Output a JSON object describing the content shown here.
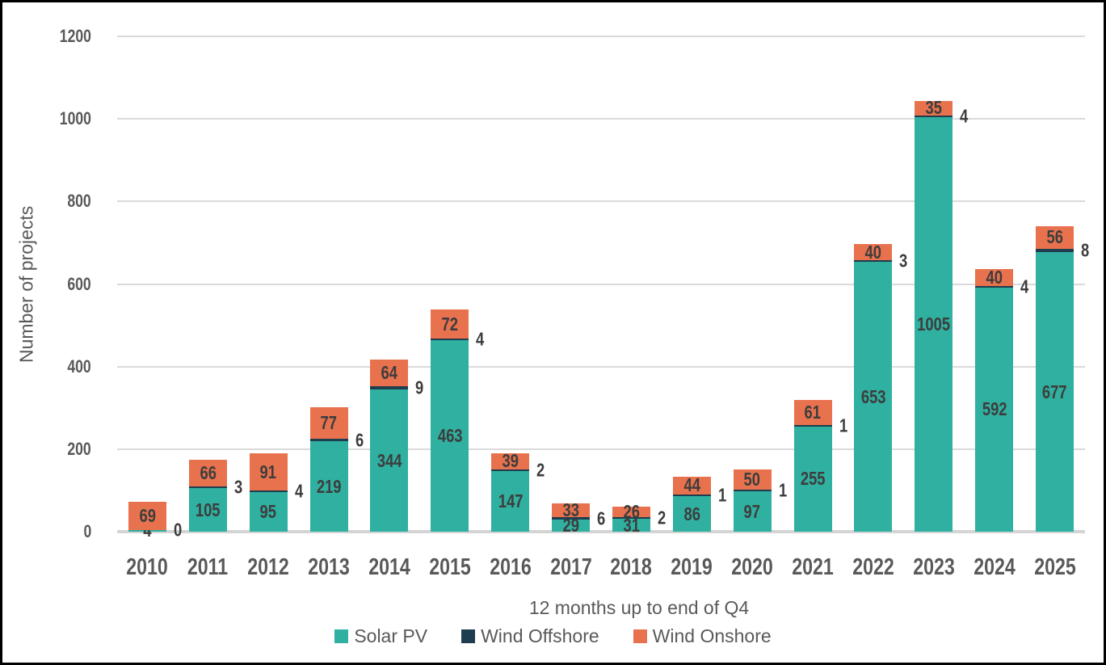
{
  "chart_data": {
    "type": "bar",
    "stacked": true,
    "title": "",
    "xlabel": "12 months up to end of Q4",
    "ylabel": "Number of projects",
    "categories": [
      "2010",
      "2011",
      "2012",
      "2013",
      "2014",
      "2015",
      "2016",
      "2017",
      "2018",
      "2019",
      "2020",
      "2021",
      "2022",
      "2023",
      "2024",
      "2025"
    ],
    "series": [
      {
        "name": "Solar PV",
        "color": "#2fb0a0",
        "values": [
          4,
          105,
          95,
          219,
          344,
          463,
          147,
          29,
          31,
          86,
          97,
          255,
          653,
          1005,
          592,
          677
        ]
      },
      {
        "name": "Wind Offshore",
        "color": "#1e3d4e",
        "values": [
          0,
          3,
          4,
          6,
          9,
          4,
          2,
          6,
          2,
          1,
          1,
          1,
          3,
          4,
          4,
          8
        ]
      },
      {
        "name": "Wind Onshore",
        "color": "#e8724e",
        "values": [
          69,
          66,
          91,
          77,
          64,
          72,
          39,
          33,
          26,
          44,
          50,
          61,
          40,
          35,
          40,
          56
        ]
      }
    ],
    "ylim": [
      0,
      1200
    ],
    "yticks": [
      0,
      200,
      400,
      600,
      800,
      1000,
      1200
    ],
    "grid": "horizontal",
    "legend_position": "bottom",
    "data_labels": true
  },
  "colors": {
    "axis_text": "#595959",
    "bar_label_text": "#3d3d3d",
    "gridline": "#dadada",
    "background": "#ffffff",
    "border": "#000000"
  }
}
